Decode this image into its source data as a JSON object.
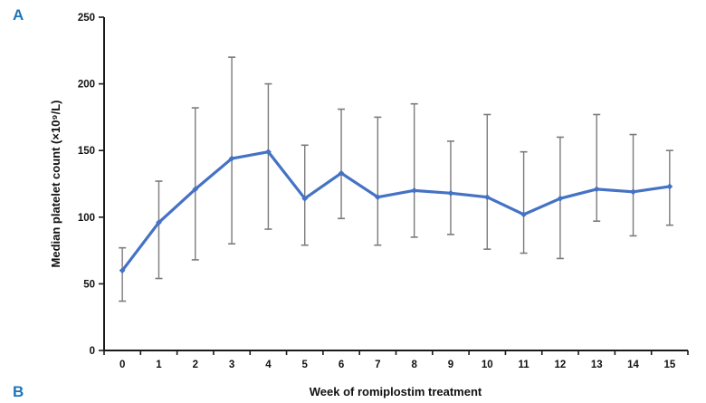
{
  "panel": {
    "top_label": "A",
    "bottom_label": "B",
    "label_color": "#1b75bc"
  },
  "chart_data": {
    "type": "line",
    "title": "",
    "xlabel": "Week of romiplostim treatment",
    "ylabel": "Median platelet count  (×10⁹/L)",
    "categories": [
      "0",
      "1",
      "2",
      "3",
      "4",
      "5",
      "6",
      "7",
      "8",
      "9",
      "10",
      "11",
      "12",
      "13",
      "14",
      "15"
    ],
    "series": [
      {
        "name": "Median platelet count",
        "values": [
          60,
          96,
          121,
          144,
          149,
          114,
          133,
          115,
          120,
          118,
          115,
          102,
          114,
          121,
          119,
          123
        ],
        "error_low": [
          37,
          54,
          68,
          80,
          91,
          79,
          99,
          79,
          85,
          87,
          76,
          73,
          69,
          97,
          86,
          94
        ],
        "error_high": [
          77,
          127,
          182,
          220,
          200,
          154,
          181,
          175,
          185,
          157,
          177,
          149,
          160,
          177,
          162,
          150
        ],
        "color": "#4472c4"
      }
    ],
    "ylim": [
      0,
      250
    ],
    "yticks": [
      0,
      50,
      100,
      150,
      200,
      250
    ],
    "grid": false,
    "legend": "none",
    "error_bar_color": "#7b7b7b",
    "axis_color": "#1a1a1a"
  }
}
